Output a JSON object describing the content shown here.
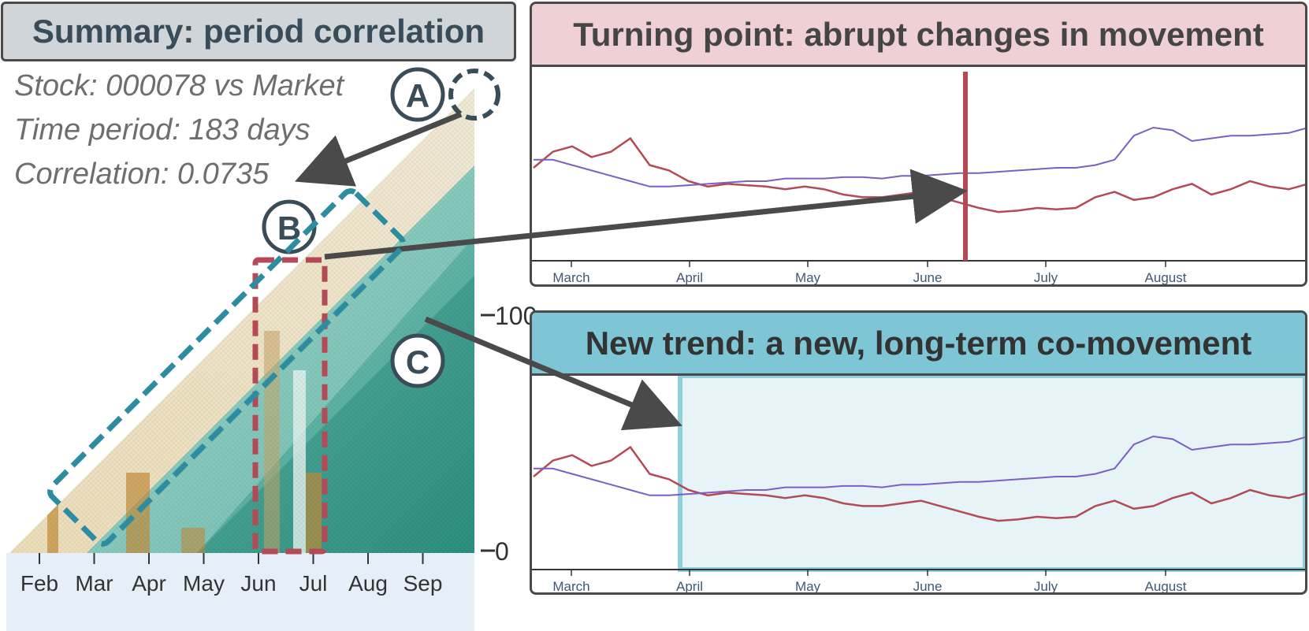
{
  "summary": {
    "title": "Summary: period correlation",
    "stock_line": "Stock: 000078 vs Market",
    "period_line": "Time period: 183 days",
    "correlation_line": "Correlation: 0.0735"
  },
  "markers": {
    "a": "A",
    "b": "B",
    "c": "C"
  },
  "colors": {
    "stock": "#b34a56",
    "market": "#7b5fc2",
    "turning": "#b34a56",
    "new_trend_fill": "#e6f4f8",
    "new_trend_border": "#8fd0dc",
    "annotation_b": "#b34a56",
    "annotation_c": "#2e8ca0",
    "arrow": "#4a4a4a"
  },
  "chart_data": [
    {
      "type": "heatmap",
      "description_of_axes": "triangular period-correlation map",
      "x_tick_labels": [
        "Feb",
        "Mar",
        "Apr",
        "May",
        "Jun",
        "Jul",
        "Aug",
        "Sep"
      ],
      "y_tick_labels": [
        "100",
        "0"
      ],
      "y_ticks": [
        100,
        0
      ]
    },
    {
      "type": "line",
      "title": "Turning point: abrupt changes in movement",
      "x_tick_labels": [
        "March",
        "April",
        "May",
        "June",
        "July",
        "August"
      ],
      "turning_point": "June",
      "series": [
        {
          "color": "#b34a56",
          "values": [
            0.6,
            0.72,
            0.76,
            0.68,
            0.72,
            0.82,
            0.62,
            0.58,
            0.5,
            0.46,
            0.48,
            0.47,
            0.46,
            0.44,
            0.46,
            0.44,
            0.4,
            0.38,
            0.38,
            0.4,
            0.42,
            0.38,
            0.34,
            0.3,
            0.27,
            0.28,
            0.3,
            0.29,
            0.3,
            0.38,
            0.42,
            0.36,
            0.38,
            0.44,
            0.48,
            0.4,
            0.44,
            0.5,
            0.46,
            0.44,
            0.48
          ]
        },
        {
          "color": "#7b5fc2",
          "values": [
            0.66,
            0.66,
            0.62,
            0.58,
            0.54,
            0.5,
            0.46,
            0.46,
            0.47,
            0.48,
            0.49,
            0.5,
            0.5,
            0.52,
            0.52,
            0.52,
            0.53,
            0.53,
            0.52,
            0.54,
            0.54,
            0.55,
            0.56,
            0.56,
            0.57,
            0.58,
            0.59,
            0.6,
            0.6,
            0.62,
            0.66,
            0.84,
            0.9,
            0.88,
            0.8,
            0.82,
            0.84,
            0.84,
            0.85,
            0.86,
            0.9
          ]
        }
      ]
    },
    {
      "type": "line",
      "title": "New trend: a new, long-term co-movement",
      "x_tick_labels": [
        "March",
        "April",
        "May",
        "June",
        "July",
        "August"
      ],
      "highlight_from": "April",
      "series": [
        {
          "color": "#b34a56",
          "values": [
            0.6,
            0.72,
            0.76,
            0.68,
            0.72,
            0.82,
            0.62,
            0.58,
            0.5,
            0.46,
            0.48,
            0.47,
            0.46,
            0.44,
            0.46,
            0.44,
            0.4,
            0.38,
            0.38,
            0.4,
            0.42,
            0.38,
            0.34,
            0.3,
            0.27,
            0.28,
            0.3,
            0.29,
            0.3,
            0.38,
            0.42,
            0.36,
            0.38,
            0.44,
            0.48,
            0.4,
            0.44,
            0.5,
            0.46,
            0.44,
            0.48
          ]
        },
        {
          "color": "#7b5fc2",
          "values": [
            0.66,
            0.66,
            0.62,
            0.58,
            0.54,
            0.5,
            0.46,
            0.46,
            0.47,
            0.48,
            0.49,
            0.5,
            0.5,
            0.52,
            0.52,
            0.52,
            0.53,
            0.53,
            0.52,
            0.54,
            0.54,
            0.55,
            0.56,
            0.56,
            0.57,
            0.58,
            0.59,
            0.6,
            0.6,
            0.62,
            0.66,
            0.84,
            0.9,
            0.88,
            0.8,
            0.82,
            0.84,
            0.84,
            0.85,
            0.86,
            0.9
          ]
        }
      ]
    }
  ]
}
